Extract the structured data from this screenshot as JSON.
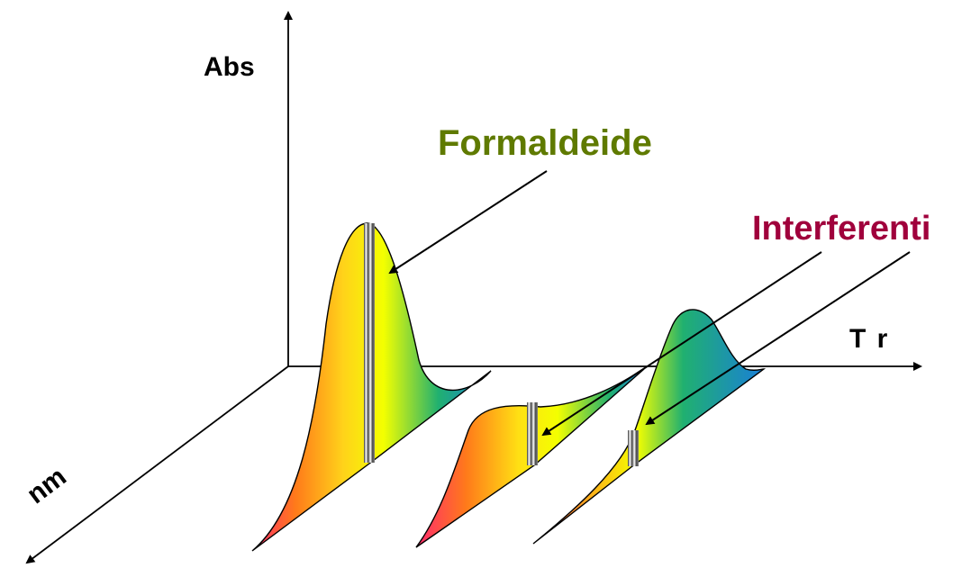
{
  "labels": {
    "y_axis": "Abs",
    "x_axis": "T r",
    "z_axis": "nm",
    "main_peak": "Formaldeide",
    "interferents": "Interferenti"
  },
  "colors": {
    "formaldeide": "#5f7a00",
    "interferenti": "#a0003c",
    "axes": "#000000"
  }
}
